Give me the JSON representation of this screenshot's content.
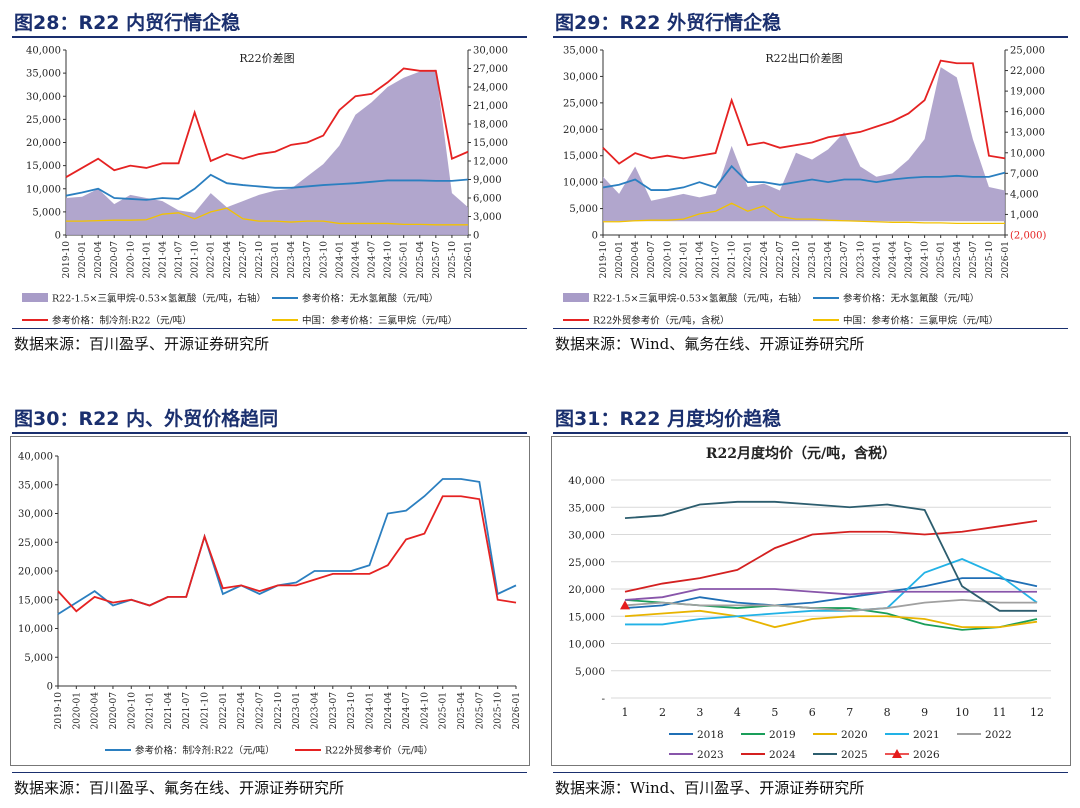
{
  "figures": {
    "fig28": {
      "title": "图28：R22 内贸行情企稳",
      "source": "数据来源：百川盈孚、开源证券研究所"
    },
    "fig29": {
      "title": "图29：R22 外贸行情企稳",
      "source": "数据来源：Wind、氟务在线、开源证券研究所"
    },
    "fig30": {
      "title": "图30：R22 内、外贸价格趋同",
      "source": "数据来源：百川盈孚、氟务在线、开源证券研究所"
    },
    "fig31": {
      "title": "图31：R22 月度均价趋稳",
      "source": "数据来源：Wind、百川盈孚、开源证券研究所"
    }
  },
  "colors": {
    "title": "#1a2f6e",
    "spread": "#a89cc8",
    "red": "#e52222",
    "blue": "#2b7fc0",
    "yellow": "#f2c200",
    "neg_label": "#e52222"
  },
  "chart_data": [
    {
      "id": "fig28",
      "type": "area",
      "title": "R22价差图",
      "x": [
        "2019-10",
        "2020-01",
        "2020-04",
        "2020-07",
        "2020-10",
        "2021-01",
        "2021-04",
        "2021-07",
        "2021-10",
        "2022-01",
        "2022-04",
        "2022-07",
        "2022-10",
        "2023-01",
        "2023-04",
        "2023-07",
        "2023-10",
        "2024-01",
        "2024-04",
        "2024-07",
        "2024-10",
        "2025-01",
        "2025-04",
        "2025-07",
        "2025-10",
        "2026-01"
      ],
      "y_left_ticks": [
        "40,000",
        "35,000",
        "30,000",
        "25,000",
        "20,000",
        "15,000",
        "10,000",
        "5,000",
        "0"
      ],
      "ylim_left": [
        0,
        40000
      ],
      "y_right_ticks": [
        "30,000",
        "27,000",
        "24,000",
        "21,000",
        "18,000",
        "15,000",
        "12,000",
        "9,000",
        "6,000",
        "3,000",
        "0"
      ],
      "ylim_right": [
        0,
        30000
      ],
      "series": [
        {
          "name": "R22-1.5×三氯甲烷-0.53×氢氟酸（元/吨，右轴）",
          "axis": "right",
          "kind": "area",
          "values": [
            6000,
            6200,
            7500,
            5000,
            6500,
            6000,
            5500,
            4000,
            3600,
            6800,
            4500,
            5500,
            6500,
            7200,
            7500,
            9500,
            11500,
            14500,
            19500,
            21500,
            24000,
            25500,
            26500,
            26800,
            6800,
            4500
          ]
        },
        {
          "name": "参考价格：无水氢氟酸（元/吨）",
          "axis": "left",
          "kind": "line",
          "values": [
            8500,
            9200,
            10000,
            8000,
            7800,
            7600,
            8000,
            7800,
            10000,
            13000,
            11200,
            10800,
            10500,
            10200,
            10200,
            10500,
            10800,
            11000,
            11200,
            11500,
            11800,
            11800,
            11800,
            11700,
            11700,
            12000
          ]
        },
        {
          "name": "参考价格：制冷剂:R22（元/吨）",
          "axis": "left",
          "kind": "line",
          "values": [
            12500,
            14500,
            16500,
            14000,
            15000,
            14500,
            15500,
            15500,
            26500,
            16000,
            17500,
            16500,
            17500,
            18000,
            19500,
            20000,
            21500,
            27000,
            30000,
            30500,
            33000,
            36000,
            35500,
            35500,
            16500,
            18000
          ]
        },
        {
          "name": "中国：参考价格：三氯甲烷（元/吨）",
          "axis": "left",
          "kind": "line",
          "values": [
            3000,
            3000,
            3100,
            3200,
            3200,
            3300,
            4500,
            4800,
            3500,
            5000,
            5800,
            3500,
            3000,
            3000,
            2800,
            3000,
            3000,
            2500,
            2500,
            2500,
            2500,
            2300,
            2300,
            2200,
            2200,
            2200
          ]
        }
      ],
      "legend": [
        "R22-1.5×三氯甲烷-0.53×氢氟酸（元/吨，右轴）",
        "参考价格：无水氢氟酸（元/吨）",
        "参考价格：制冷剂:R22（元/吨）",
        "中国：参考价格：三氯甲烷（元/吨）"
      ]
    },
    {
      "id": "fig29",
      "type": "area",
      "title": "R22出口价差图",
      "x": [
        "2019-10",
        "2020-01",
        "2020-04",
        "2020-07",
        "2020-10",
        "2021-01",
        "2021-04",
        "2021-07",
        "2021-10",
        "2022-01",
        "2022-04",
        "2022-07",
        "2022-10",
        "2023-01",
        "2023-04",
        "2023-07",
        "2023-10",
        "2024-01",
        "2024-04",
        "2024-07",
        "2024-10",
        "2025-01",
        "2025-04",
        "2025-07",
        "2025-10",
        "2026-01"
      ],
      "y_left_ticks": [
        "35,000",
        "30,000",
        "25,000",
        "20,000",
        "15,000",
        "10,000",
        "5,000",
        "0"
      ],
      "ylim_left": [
        0,
        35000
      ],
      "y_right_ticks": [
        "25,000",
        "22,000",
        "19,000",
        "16,000",
        "13,000",
        "10,000",
        "7,000",
        "4,000",
        "1,000",
        "(2,000)"
      ],
      "ylim_right": [
        -2000,
        25000
      ],
      "series": [
        {
          "name": "R22-1.5×三氯甲烷-0.53×氢氟酸（元/吨，右轴）",
          "axis": "right",
          "kind": "area",
          "values": [
            6500,
            4000,
            8000,
            3000,
            3500,
            4000,
            3500,
            4000,
            11000,
            5000,
            5500,
            4500,
            10000,
            9000,
            10500,
            13000,
            8000,
            6500,
            7000,
            9000,
            12000,
            22500,
            21000,
            12000,
            5000,
            4500
          ]
        },
        {
          "name": "参考价格：无水氢氟酸（元/吨）",
          "axis": "left",
          "kind": "line",
          "values": [
            9000,
            9500,
            10500,
            8500,
            8500,
            9000,
            10000,
            9000,
            13000,
            10000,
            10000,
            9500,
            10000,
            10500,
            10000,
            10500,
            10500,
            10000,
            10500,
            10800,
            11000,
            11000,
            11200,
            11000,
            11000,
            11800
          ]
        },
        {
          "name": "R22外贸参考价（元/吨，含税）",
          "axis": "left",
          "kind": "line",
          "values": [
            16500,
            13500,
            15500,
            14500,
            15000,
            14500,
            15000,
            15500,
            25500,
            17000,
            17500,
            16500,
            17000,
            17500,
            18500,
            19000,
            19500,
            20500,
            21500,
            23000,
            25500,
            33000,
            32500,
            32500,
            15000,
            14500
          ]
        },
        {
          "name": "中国：参考价格：三氯甲烷（元/吨）",
          "axis": "left",
          "kind": "line",
          "values": [
            2500,
            2500,
            2700,
            2800,
            2800,
            3000,
            4000,
            4500,
            6000,
            4500,
            5500,
            3500,
            3000,
            3000,
            2800,
            2700,
            2600,
            2500,
            2400,
            2400,
            2300,
            2300,
            2200,
            2200,
            2200,
            2200
          ]
        }
      ],
      "legend": [
        "R22-1.5×三氯甲烷-0.53×氢氟酸（元/吨，右轴）",
        "参考价格：无水氢氟酸（元/吨）",
        "R22外贸参考价（元/吨，含税）",
        "中国：参考价格：三氯甲烷（元/吨）"
      ]
    },
    {
      "id": "fig30",
      "type": "line",
      "title": "",
      "x": [
        "2019-10",
        "2020-01",
        "2020-04",
        "2020-07",
        "2020-10",
        "2021-01",
        "2021-04",
        "2021-07",
        "2021-10",
        "2022-01",
        "2022-04",
        "2022-07",
        "2022-10",
        "2023-01",
        "2023-04",
        "2023-07",
        "2023-10",
        "2024-01",
        "2024-04",
        "2024-07",
        "2024-10",
        "2025-01",
        "2025-04",
        "2025-07",
        "2025-10",
        "2026-01"
      ],
      "y_left_ticks": [
        "40,000",
        "35,000",
        "30,000",
        "25,000",
        "20,000",
        "15,000",
        "10,000",
        "5,000",
        "0"
      ],
      "ylim_left": [
        0,
        40000
      ],
      "series": [
        {
          "name": "参考价格：制冷剂:R22（元/吨）",
          "axis": "left",
          "kind": "line",
          "values": [
            12500,
            14500,
            16500,
            14000,
            15000,
            14000,
            15500,
            15500,
            26000,
            16000,
            17500,
            16000,
            17500,
            18000,
            20000,
            20000,
            20000,
            21000,
            30000,
            30500,
            33000,
            36000,
            36000,
            35500,
            16000,
            17500
          ]
        },
        {
          "name": "R22外贸参考价（元/吨）",
          "axis": "left",
          "kind": "line",
          "values": [
            16500,
            13000,
            15500,
            14500,
            15000,
            14000,
            15500,
            15500,
            26000,
            17000,
            17500,
            16500,
            17500,
            17500,
            18500,
            19500,
            19500,
            19500,
            21000,
            25500,
            26500,
            33000,
            33000,
            32500,
            15000,
            14500
          ]
        }
      ],
      "legend": [
        "参考价格：制冷剂:R22（元/吨）",
        "R22外贸参考价（元/吨）"
      ]
    },
    {
      "id": "fig31",
      "type": "line",
      "title": "R22月度均价（元/吨，含税）",
      "categories": [
        "1",
        "2",
        "3",
        "4",
        "5",
        "6",
        "7",
        "8",
        "9",
        "10",
        "11",
        "12"
      ],
      "y_ticks": [
        "40,000",
        "35,000",
        "30,000",
        "25,000",
        "20,000",
        "15,000",
        "10,000",
        "5,000",
        "-"
      ],
      "ylim": [
        0,
        40000
      ],
      "series": [
        {
          "name": "2018",
          "color": "#1f6fb5",
          "values": [
            16500,
            17000,
            18500,
            17500,
            17000,
            17500,
            18500,
            19500,
            20500,
            22000,
            22000,
            20500
          ]
        },
        {
          "name": "2019",
          "color": "#1a9e5a",
          "values": [
            18000,
            17500,
            17000,
            16500,
            17000,
            16500,
            16500,
            15500,
            13500,
            12500,
            13000,
            14500
          ]
        },
        {
          "name": "2020",
          "color": "#e8b400",
          "values": [
            15000,
            15500,
            16000,
            15000,
            13000,
            14500,
            15000,
            15000,
            14500,
            13000,
            13000,
            14000
          ]
        },
        {
          "name": "2021",
          "color": "#22b2e6",
          "values": [
            13500,
            13500,
            14500,
            15000,
            15500,
            16000,
            16000,
            16500,
            23000,
            25500,
            22500,
            17500
          ]
        },
        {
          "name": "2022",
          "color": "#a0a0a0",
          "values": [
            17000,
            17500,
            17000,
            17000,
            17000,
            16500,
            16000,
            16500,
            17500,
            18000,
            17500,
            17500
          ]
        },
        {
          "name": "2023",
          "color": "#8855aa",
          "values": [
            18000,
            18500,
            20000,
            20000,
            20000,
            19500,
            19000,
            19500,
            19500,
            19500,
            19500,
            19500
          ]
        },
        {
          "name": "2024",
          "color": "#d42020",
          "values": [
            19500,
            21000,
            22000,
            23500,
            27500,
            30000,
            30500,
            30500,
            30000,
            30500,
            31500,
            32500
          ]
        },
        {
          "name": "2025",
          "color": "#2c5d6e",
          "values": [
            33000,
            33500,
            35500,
            36000,
            36000,
            35500,
            35000,
            35500,
            34500,
            20500,
            16000,
            16000
          ]
        },
        {
          "name": "2026",
          "color": "#e51c1c",
          "marker": "triangle",
          "values": [
            17000,
            null,
            null,
            null,
            null,
            null,
            null,
            null,
            null,
            null,
            null,
            null
          ]
        }
      ],
      "legend": [
        "2018",
        "2019",
        "2020",
        "2021",
        "2022",
        "2023",
        "2024",
        "2025",
        "2026"
      ]
    }
  ]
}
